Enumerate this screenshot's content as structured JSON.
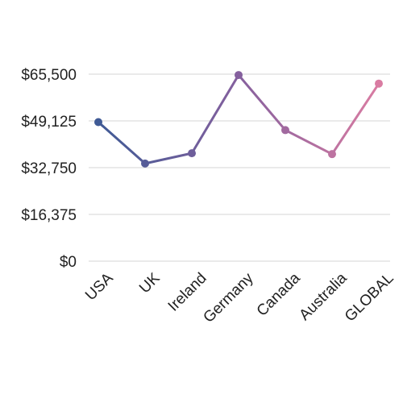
{
  "chart_data": {
    "type": "line",
    "title": "",
    "xlabel": "",
    "ylabel": "",
    "categories": [
      "USA",
      "UK",
      "Ireland",
      "Germany",
      "Canada",
      "Australia",
      "GLOBAL"
    ],
    "series": [
      {
        "values": [
          48700,
          34200,
          37800,
          65200,
          45900,
          37500,
          62200
        ]
      }
    ],
    "ylim": [
      0,
      65500
    ],
    "yticks": [
      "$0",
      "$16,375",
      "$32,750",
      "$49,125",
      "$65,500"
    ],
    "ytick_values": [
      0,
      16375,
      32750,
      49125,
      65500
    ],
    "grid": true,
    "legend": "none",
    "colors": [
      "#3f5a95",
      "#85609e",
      "#d97ca2"
    ]
  }
}
